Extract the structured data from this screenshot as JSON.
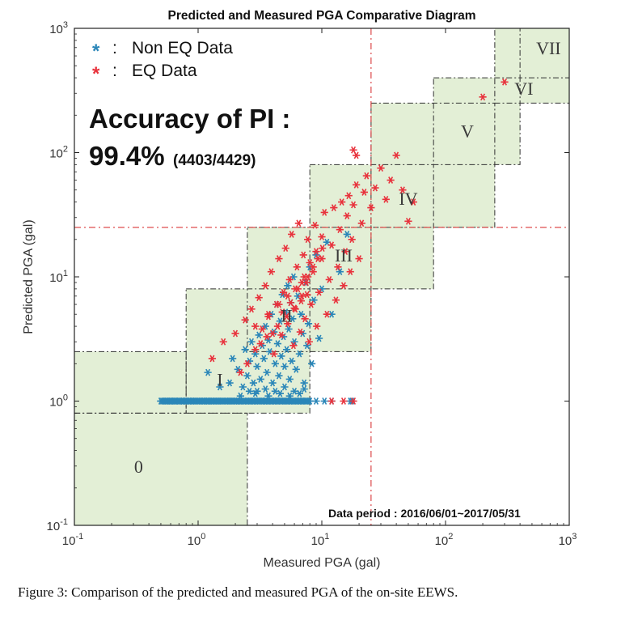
{
  "chart_data": {
    "type": "scatter",
    "title": "Predicted and Measured PGA Comparative Diagram",
    "xlabel": "Measured PGA (gal)",
    "ylabel": "Predicted PGA (gal)",
    "x_scale": "log",
    "y_scale": "log",
    "xlim": [
      0.1,
      1000
    ],
    "ylim": [
      0.1,
      1000
    ],
    "x_ticks": [
      {
        "value": 0.1,
        "base": "10",
        "exp": "-1"
      },
      {
        "value": 1,
        "base": "10",
        "exp": "0"
      },
      {
        "value": 10,
        "base": "10",
        "exp": "1"
      },
      {
        "value": 100,
        "base": "10",
        "exp": "2"
      },
      {
        "value": 1000,
        "base": "10",
        "exp": "3"
      }
    ],
    "y_ticks": [
      {
        "value": 0.1,
        "base": "10",
        "exp": "-1"
      },
      {
        "value": 1,
        "base": "10",
        "exp": "0"
      },
      {
        "value": 10,
        "base": "10",
        "exp": "1"
      },
      {
        "value": 100,
        "base": "10",
        "exp": "2"
      },
      {
        "value": 1000,
        "base": "10",
        "exp": "3"
      }
    ],
    "legend": {
      "placement": "top-left",
      "entries": [
        {
          "marker": "*",
          "separator": ":",
          "label": "Non EQ Data",
          "color": "#2a86b8"
        },
        {
          "marker": "*",
          "separator": ":",
          "label": "EQ Data",
          "color": "#e8323c"
        }
      ]
    },
    "annotations": {
      "accuracy_line1": "Accuracy of PI :",
      "accuracy_value": "99.4%",
      "accuracy_ratio": "(4403/4429)",
      "data_period": "Data period : 2016/06/01~2017/05/31"
    },
    "threshold_lines": {
      "x": 25,
      "y": 25,
      "color": "#d9383a",
      "style": "dash-dot"
    },
    "intensity_zones": [
      {
        "label": "0",
        "x": [
          0.1,
          2.5
        ],
        "y": [
          0.1,
          0.8
        ],
        "label_pos": [
          0.33,
          0.3
        ]
      },
      {
        "label": "0",
        "x": [
          0.1,
          0.8
        ],
        "y": [
          0.8,
          2.5
        ],
        "label_pos": null
      },
      {
        "label": "I",
        "x": [
          0.8,
          8
        ],
        "y": [
          0.8,
          8
        ],
        "label_pos": [
          1.5,
          1.5
        ]
      },
      {
        "label": "II",
        "x": [
          2.5,
          25
        ],
        "y": [
          2.5,
          25
        ],
        "label_pos": [
          5.2,
          4.9
        ]
      },
      {
        "label": "III",
        "x": [
          8,
          80
        ],
        "y": [
          8,
          80
        ],
        "label_pos": [
          15,
          15
        ]
      },
      {
        "label": "IV",
        "x": [
          25,
          250
        ],
        "y": [
          25,
          250
        ],
        "label_pos": [
          50,
          43
        ]
      },
      {
        "label": "V",
        "x": [
          80,
          400
        ],
        "y": [
          80,
          400
        ],
        "label_pos": [
          150,
          150
        ]
      },
      {
        "label": "VI",
        "x": [
          250,
          1000
        ],
        "y": [
          250,
          1000
        ],
        "label_pos": [
          430,
          330
        ]
      },
      {
        "label": "VII",
        "x": [
          400,
          1000
        ],
        "y": [
          400,
          1000
        ],
        "label_pos": [
          680,
          700
        ]
      }
    ],
    "zone_fill": "#e3efd6",
    "series": [
      {
        "name": "Non EQ Data",
        "color": "#2a86b8",
        "points": [
          [
            0.5,
            1
          ],
          [
            0.55,
            1
          ],
          [
            0.6,
            1
          ],
          [
            0.65,
            1
          ],
          [
            0.7,
            1
          ],
          [
            0.75,
            1
          ],
          [
            0.8,
            1
          ],
          [
            0.85,
            1
          ],
          [
            0.9,
            1
          ],
          [
            1.0,
            1
          ],
          [
            1.1,
            1
          ],
          [
            1.2,
            1
          ],
          [
            1.3,
            1
          ],
          [
            1.45,
            1
          ],
          [
            1.6,
            1
          ],
          [
            1.8,
            1
          ],
          [
            2.0,
            1
          ],
          [
            2.2,
            1
          ],
          [
            2.5,
            1
          ],
          [
            2.8,
            1
          ],
          [
            3.1,
            1
          ],
          [
            3.5,
            1
          ],
          [
            3.9,
            1
          ],
          [
            4.4,
            1
          ],
          [
            5.0,
            1
          ],
          [
            5.6,
            1
          ],
          [
            6.3,
            1
          ],
          [
            7.0,
            1
          ],
          [
            8.0,
            1
          ],
          [
            9.0,
            1
          ],
          [
            10.5,
            1
          ],
          [
            12,
            1
          ],
          [
            17,
            1
          ],
          [
            1.2,
            1.7
          ],
          [
            1.5,
            1.3
          ],
          [
            1.8,
            1.4
          ],
          [
            1.9,
            2.2
          ],
          [
            2.1,
            1.8
          ],
          [
            2.3,
            1.3
          ],
          [
            2.4,
            2.6
          ],
          [
            2.5,
            1.6
          ],
          [
            2.6,
            2.1
          ],
          [
            2.7,
            3.0
          ],
          [
            2.8,
            1.4
          ],
          [
            2.9,
            2.4
          ],
          [
            3.0,
            1.9
          ],
          [
            3.1,
            3.4
          ],
          [
            3.2,
            1.5
          ],
          [
            3.3,
            2.8
          ],
          [
            3.4,
            2.2
          ],
          [
            3.5,
            4.0
          ],
          [
            3.6,
            1.7
          ],
          [
            3.7,
            3.1
          ],
          [
            3.8,
            2.5
          ],
          [
            3.9,
            5.0
          ],
          [
            4.0,
            1.4
          ],
          [
            4.1,
            3.6
          ],
          [
            4.2,
            2.0
          ],
          [
            4.3,
            6.0
          ],
          [
            4.4,
            2.9
          ],
          [
            4.5,
            1.6
          ],
          [
            4.6,
            4.4
          ],
          [
            4.7,
            2.3
          ],
          [
            4.8,
            7.2
          ],
          [
            4.9,
            3.3
          ],
          [
            5.0,
            1.9
          ],
          [
            5.1,
            5.2
          ],
          [
            5.2,
            2.6
          ],
          [
            5.3,
            8.5
          ],
          [
            5.4,
            3.8
          ],
          [
            5.5,
            1.5
          ],
          [
            5.6,
            6.2
          ],
          [
            5.7,
            2.1
          ],
          [
            5.8,
            4.6
          ],
          [
            5.9,
            10
          ],
          [
            6.0,
            3.0
          ],
          [
            6.2,
            1.8
          ],
          [
            6.4,
            7.0
          ],
          [
            6.6,
            2.4
          ],
          [
            6.8,
            5.0
          ],
          [
            7.0,
            3.5
          ],
          [
            7.2,
            1.4
          ],
          [
            7.4,
            9.0
          ],
          [
            7.6,
            2.8
          ],
          [
            7.8,
            4.2
          ],
          [
            8.0,
            12
          ],
          [
            8.3,
            2.0
          ],
          [
            8.6,
            6.5
          ],
          [
            9.0,
            15
          ],
          [
            9.5,
            3.2
          ],
          [
            10,
            8.0
          ],
          [
            11,
            19
          ],
          [
            12,
            5.0
          ],
          [
            14,
            11
          ],
          [
            16,
            22
          ],
          [
            17.5,
            1.0
          ],
          [
            2.6,
            1.2
          ],
          [
            3.0,
            1.2
          ],
          [
            3.5,
            1.25
          ],
          [
            4.2,
            1.2
          ],
          [
            5.0,
            1.3
          ],
          [
            6.0,
            1.2
          ],
          [
            7.2,
            1.25
          ],
          [
            2.2,
            1.1
          ],
          [
            2.9,
            1.15
          ],
          [
            3.7,
            1.1
          ],
          [
            4.6,
            1.15
          ],
          [
            5.5,
            1.1
          ],
          [
            6.6,
            1.15
          ]
        ]
      },
      {
        "name": "EQ Data",
        "color": "#e8323c",
        "points": [
          [
            1.3,
            2.2
          ],
          [
            1.6,
            3.0
          ],
          [
            2.0,
            3.5
          ],
          [
            2.2,
            1.7
          ],
          [
            2.4,
            4.5
          ],
          [
            2.7,
            5.5
          ],
          [
            2.9,
            2.6
          ],
          [
            3.1,
            6.8
          ],
          [
            3.3,
            3.8
          ],
          [
            3.5,
            8.5
          ],
          [
            3.7,
            4.8
          ],
          [
            3.9,
            11
          ],
          [
            4.1,
            2.4
          ],
          [
            4.3,
            6.0
          ],
          [
            4.5,
            14
          ],
          [
            4.7,
            3.4
          ],
          [
            4.9,
            7.5
          ],
          [
            5.1,
            17
          ],
          [
            5.3,
            4.2
          ],
          [
            5.5,
            9.5
          ],
          [
            5.7,
            22
          ],
          [
            5.9,
            2.8
          ],
          [
            6.1,
            5.5
          ],
          [
            6.3,
            12
          ],
          [
            6.5,
            27
          ],
          [
            6.7,
            3.6
          ],
          [
            6.9,
            7.0
          ],
          [
            7.1,
            15
          ],
          [
            7.3,
            4.6
          ],
          [
            7.5,
            9.0
          ],
          [
            7.7,
            20
          ],
          [
            7.9,
            3.0
          ],
          [
            8.2,
            6.0
          ],
          [
            8.5,
            11
          ],
          [
            8.8,
            26
          ],
          [
            9.1,
            4.0
          ],
          [
            9.5,
            7.5
          ],
          [
            10,
            14
          ],
          [
            10.5,
            33
          ],
          [
            11,
            5.0
          ],
          [
            11.5,
            9.5
          ],
          [
            12,
            18
          ],
          [
            12.5,
            36
          ],
          [
            13,
            6.5
          ],
          [
            13.5,
            12
          ],
          [
            14,
            24
          ],
          [
            14.5,
            40
          ],
          [
            15,
            8.5
          ],
          [
            15.5,
            16
          ],
          [
            16,
            31
          ],
          [
            16.5,
            45
          ],
          [
            17,
            11
          ],
          [
            17.5,
            20
          ],
          [
            18,
            38
          ],
          [
            19,
            55
          ],
          [
            20,
            14
          ],
          [
            21,
            27
          ],
          [
            22,
            48
          ],
          [
            23,
            65
          ],
          [
            25,
            36
          ],
          [
            27,
            52
          ],
          [
            30,
            75
          ],
          [
            33,
            42
          ],
          [
            36,
            60
          ],
          [
            40,
            95
          ],
          [
            45,
            50
          ],
          [
            50,
            28
          ],
          [
            55,
            40
          ],
          [
            18,
            105
          ],
          [
            19,
            95
          ],
          [
            200,
            280
          ],
          [
            300,
            370
          ],
          [
            12,
            1.0
          ],
          [
            15,
            1.0
          ],
          [
            18,
            1.0
          ],
          [
            2.5,
            2.0
          ],
          [
            3.2,
            2.9
          ],
          [
            4.0,
            3.5
          ],
          [
            4.8,
            5.2
          ],
          [
            5.6,
            6.2
          ],
          [
            6.4,
            8.0
          ],
          [
            7.2,
            10
          ],
          [
            8.0,
            13
          ],
          [
            9.0,
            16
          ],
          [
            10,
            21
          ],
          [
            3.6,
            3.3
          ],
          [
            4.4,
            4.0
          ],
          [
            5.2,
            4.8
          ],
          [
            6.0,
            5.6
          ],
          [
            6.8,
            6.4
          ],
          [
            7.6,
            7.2
          ],
          [
            2.9,
            4.0
          ],
          [
            3.7,
            5.0
          ],
          [
            4.5,
            6.0
          ],
          [
            5.3,
            7.0
          ],
          [
            6.1,
            8.0
          ],
          [
            6.9,
            9.0
          ],
          [
            7.7,
            10
          ],
          [
            8.5,
            12
          ],
          [
            9.3,
            14
          ],
          [
            10.1,
            17
          ]
        ]
      }
    ]
  },
  "figure": {
    "caption": "Figure 3: Comparison of the predicted and measured PGA of the on-site EEWS."
  }
}
